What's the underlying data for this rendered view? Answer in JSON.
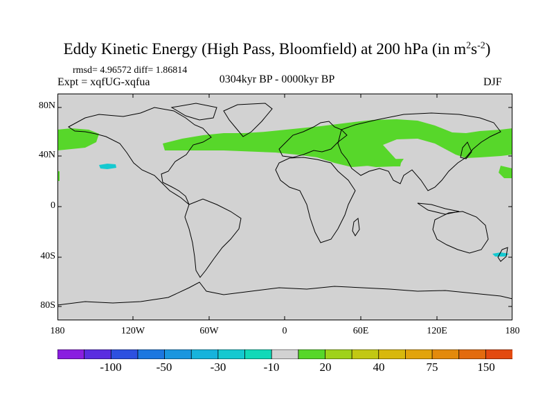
{
  "title": {
    "main": "Eddy Kinetic Energy (High Pass, Bloomfield) at 200 hPa (in m",
    "sup1": "2",
    "mid": "s",
    "sup2": "-2",
    "end": ")"
  },
  "stats": "rmsd= 4.96572 diff= 1.86814",
  "experiment": "Expt = xqfUG-xqfua",
  "period": "0304kyr BP - 0000kyr BP",
  "season": "DJF",
  "y_axis_labels": [
    "80N",
    "40N",
    "0",
    "40S",
    "80S"
  ],
  "x_axis_labels": [
    "180",
    "120W",
    "60W",
    "0",
    "60E",
    "120E",
    "180"
  ],
  "colorbar": {
    "colors": [
      "#8a1ee0",
      "#5a2de0",
      "#2d50e0",
      "#1c77e0",
      "#1a96df",
      "#16b3dc",
      "#15c9d0",
      "#12d9b8",
      "#d2d2d2",
      "#57d72a",
      "#9fd21a",
      "#c2c813",
      "#d8b80d",
      "#e2a40c",
      "#e38a0c",
      "#e36b0e",
      "#e34a10"
    ],
    "labels": [
      "-100",
      "-50",
      "-30",
      "-10",
      "20",
      "40",
      "75",
      "150"
    ]
  },
  "map_colors": {
    "background": "#d2d2d2",
    "positive_anomaly": "#57d72a",
    "negative_anomaly": "#15c9d0",
    "coastline": "#000000"
  }
}
